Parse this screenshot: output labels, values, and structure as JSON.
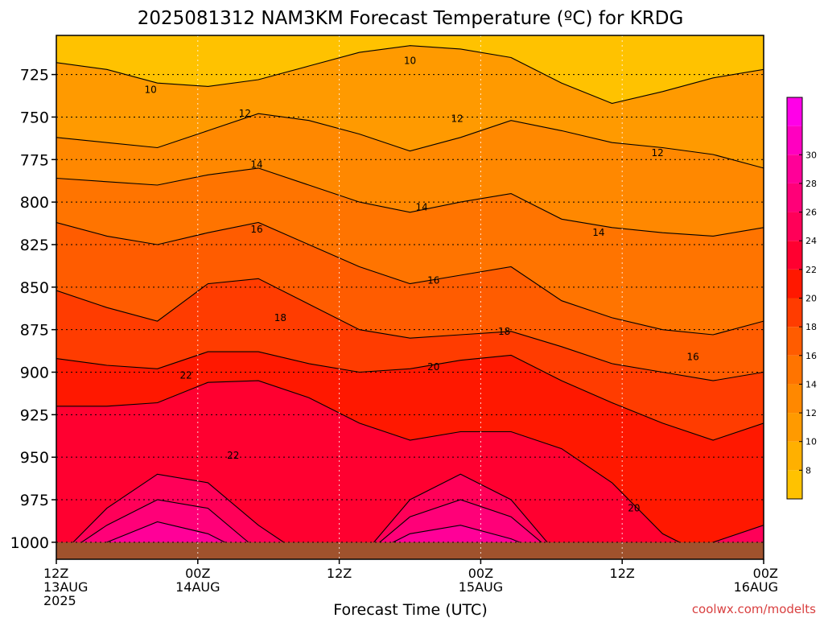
{
  "chart_data": {
    "type": "heatmap",
    "title": "2025081312 NAM3KM Forecast Temperature (ºC) for KRDG",
    "xlabel": "Forecast Time (UTC)",
    "ylabel": "",
    "credit": "coolwx.com/modelts",
    "x_ticks": [
      {
        "hours": 0,
        "lines": [
          "12Z",
          "13AUG",
          "2025"
        ]
      },
      {
        "hours": 12,
        "lines": [
          "00Z",
          "14AUG"
        ]
      },
      {
        "hours": 24,
        "lines": [
          "12Z"
        ]
      },
      {
        "hours": 36,
        "lines": [
          "00Z",
          "15AUG"
        ]
      },
      {
        "hours": 48,
        "lines": [
          "12Z"
        ]
      },
      {
        "hours": 60,
        "lines": [
          "00Z",
          "16AUG"
        ]
      }
    ],
    "xlim_hours": [
      0,
      60
    ],
    "y_ticks": [
      725,
      750,
      775,
      800,
      825,
      850,
      875,
      900,
      925,
      950,
      975,
      1000
    ],
    "ylim": [
      1010,
      702
    ],
    "colorbar": {
      "labels": [
        8,
        10,
        12,
        14,
        16,
        18,
        20,
        22,
        24,
        26,
        28,
        30
      ],
      "bins": [
        6,
        8,
        10,
        12,
        14,
        16,
        18,
        20,
        22,
        24,
        26,
        28,
        30,
        32
      ],
      "colors": [
        "#ffc200",
        "#ffb000",
        "#ff9a00",
        "#ff8800",
        "#ff7400",
        "#ff5c00",
        "#ff3c00",
        "#ff1800",
        "#ff0030",
        "#ff0058",
        "#ff0078",
        "#ff0098",
        "#ff00c0",
        "#ff00e8"
      ]
    },
    "ground_color": "#a0522d",
    "ground_top_hpa": 1000,
    "contours": [
      {
        "level": 10,
        "color": "#ff9a00",
        "pressure": [
          718,
          722,
          730,
          732,
          728,
          720,
          712,
          708,
          710,
          715,
          730,
          742,
          735,
          727,
          722
        ]
      },
      {
        "level": 12,
        "color": "#ff8800",
        "pressure": [
          762,
          765,
          768,
          758,
          748,
          752,
          760,
          770,
          762,
          752,
          758,
          765,
          768,
          772,
          780
        ]
      },
      {
        "level": 14,
        "color": "#ff7400",
        "pressure": [
          786,
          788,
          790,
          784,
          780,
          790,
          800,
          806,
          800,
          795,
          810,
          815,
          818,
          820,
          815
        ]
      },
      {
        "level": 16,
        "color": "#ff5c00",
        "pressure": [
          812,
          820,
          825,
          818,
          812,
          825,
          838,
          848,
          843,
          838,
          858,
          868,
          875,
          878,
          870
        ]
      },
      {
        "level": 18,
        "color": "#ff3c00",
        "pressure": [
          852,
          862,
          870,
          848,
          845,
          860,
          875,
          880,
          878,
          876,
          885,
          895,
          900,
          905,
          900
        ]
      },
      {
        "level": 20,
        "color": "#ff1800",
        "pressure": [
          892,
          896,
          898,
          888,
          888,
          895,
          900,
          898,
          893,
          890,
          905,
          918,
          930,
          940,
          930
        ]
      },
      {
        "level": 22,
        "color": "#ff0030",
        "pressure": [
          920,
          920,
          918,
          906,
          905,
          915,
          930,
          940,
          935,
          935,
          945,
          965,
          995,
          1010,
          1010
        ]
      },
      {
        "level": 24,
        "color": "#ff0058",
        "pressure": [
          1010,
          980,
          960,
          965,
          990,
          1010,
          1010,
          975,
          960,
          975,
          1010,
          1010,
          1010,
          1000,
          990
        ]
      },
      {
        "level": 26,
        "color": "#ff0078",
        "pressure": [
          1010,
          990,
          975,
          980,
          1005,
          1010,
          1010,
          985,
          975,
          985,
          1010,
          1010,
          1010,
          1010,
          1000
        ]
      },
      {
        "level": 28,
        "color": "#ff0098",
        "pressure": [
          1010,
          1000,
          988,
          995,
          1010,
          1010,
          1010,
          995,
          990,
          998,
          1010,
          1010,
          1010,
          1010,
          1010
        ]
      }
    ],
    "contour_labels": [
      {
        "text": "10",
        "hours": 8,
        "hpa": 734
      },
      {
        "text": "10",
        "hours": 30,
        "hpa": 717
      },
      {
        "text": "12",
        "hours": 16,
        "hpa": 748
      },
      {
        "text": "12",
        "hours": 34,
        "hpa": 751
      },
      {
        "text": "12",
        "hours": 51,
        "hpa": 771
      },
      {
        "text": "14",
        "hours": 17,
        "hpa": 778
      },
      {
        "text": "14",
        "hours": 31,
        "hpa": 803
      },
      {
        "text": "14",
        "hours": 46,
        "hpa": 818
      },
      {
        "text": "16",
        "hours": 17,
        "hpa": 816
      },
      {
        "text": "16",
        "hours": 32,
        "hpa": 846
      },
      {
        "text": "16",
        "hours": 54,
        "hpa": 891
      },
      {
        "text": "18",
        "hours": 19,
        "hpa": 868
      },
      {
        "text": "18",
        "hours": 38,
        "hpa": 876
      },
      {
        "text": "20",
        "hours": 32,
        "hpa": 897
      },
      {
        "text": "20",
        "hours": 49,
        "hpa": 980
      },
      {
        "text": "22",
        "hours": 11,
        "hpa": 902
      },
      {
        "text": "22",
        "hours": 15,
        "hpa": 949
      }
    ]
  }
}
